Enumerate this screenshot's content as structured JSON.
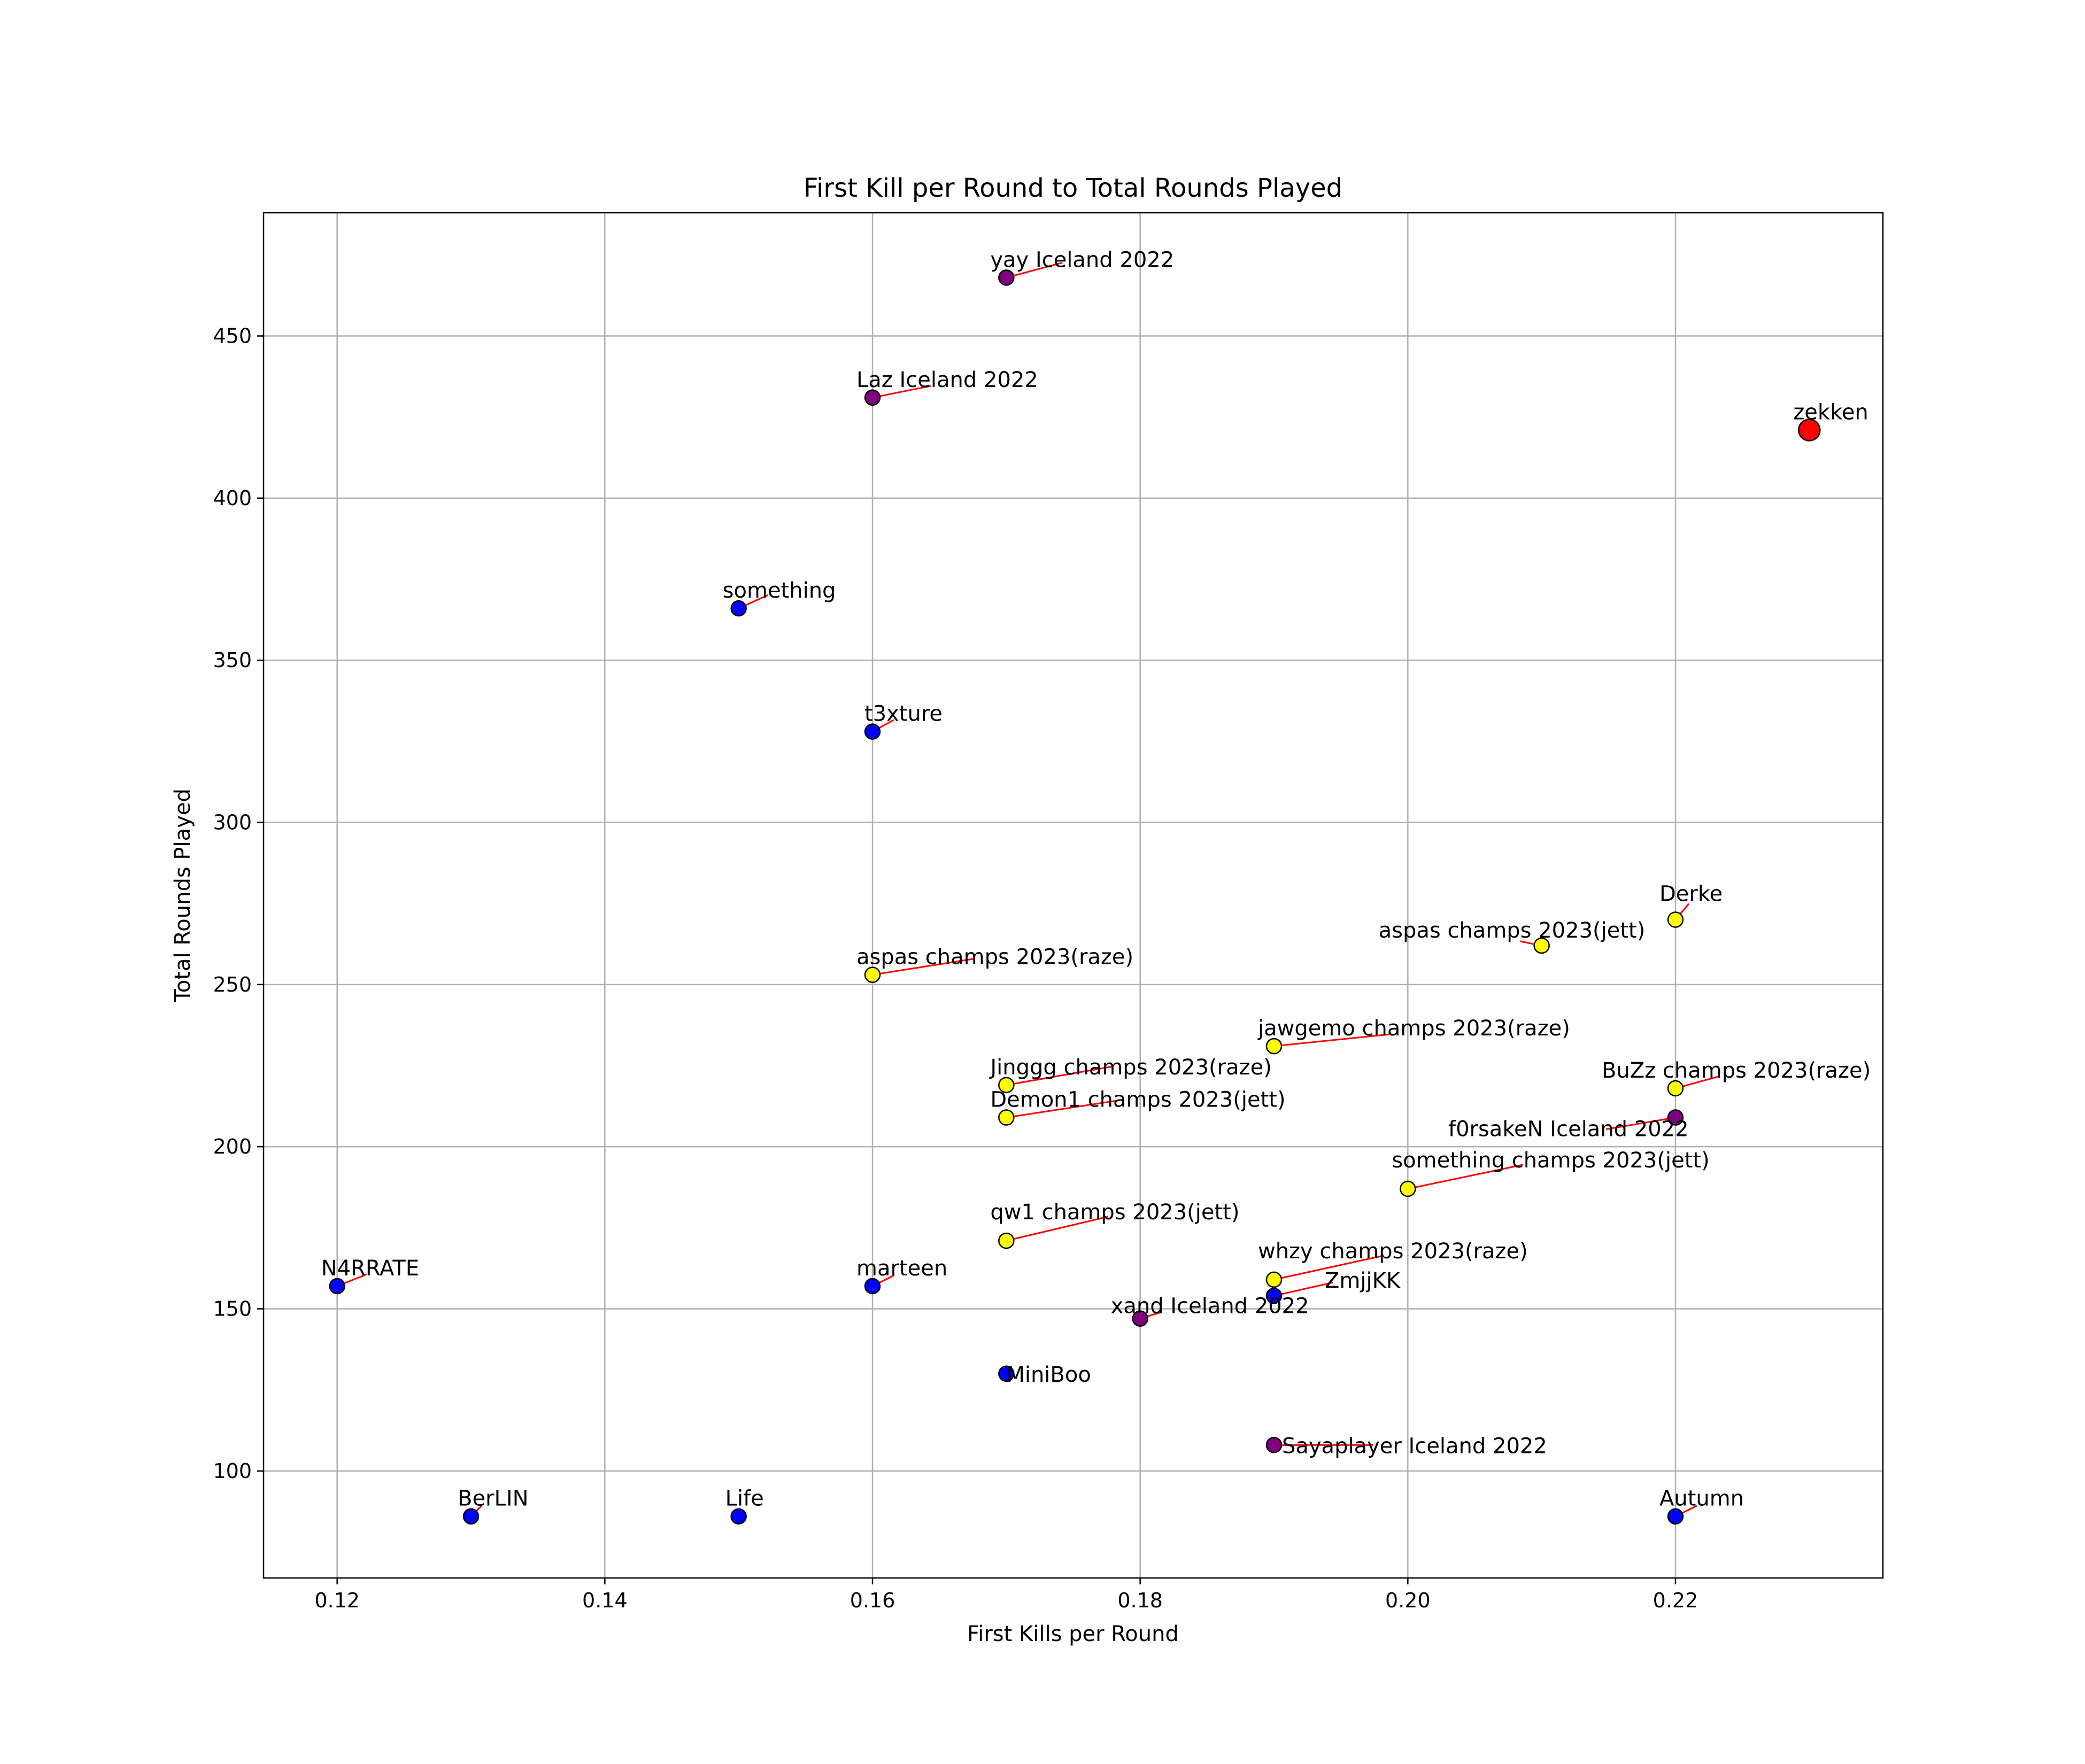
{
  "chart_data": {
    "type": "scatter",
    "title": "First Kill per Round to Total Rounds Played",
    "xlabel": "First Kills per Round",
    "ylabel": "Total Rounds Played",
    "xlim": [
      0.1145,
      0.2355
    ],
    "ylim": [
      67,
      488
    ],
    "xticks": [
      "0.12",
      "0.14",
      "0.16",
      "0.18",
      "0.20",
      "0.22"
    ],
    "yticks": [
      "100",
      "150",
      "200",
      "250",
      "300",
      "350",
      "400",
      "450"
    ],
    "grid": true,
    "legend": "none",
    "colors": {
      "blue": "#0000ff",
      "yellow": "#ffff00",
      "purple": "#800080",
      "red": "#ff0000",
      "connector": "#ff0000",
      "grid": "#b0b0b0"
    },
    "points": [
      {
        "label": "yay Iceland 2022",
        "x": 0.17,
        "y": 468,
        "color": "purple"
      },
      {
        "label": "Laz Iceland 2022",
        "x": 0.16,
        "y": 431,
        "color": "purple"
      },
      {
        "label": "zekken",
        "x": 0.23,
        "y": 421,
        "color": "red"
      },
      {
        "label": "something",
        "x": 0.15,
        "y": 366,
        "color": "blue"
      },
      {
        "label": "t3xture",
        "x": 0.16,
        "y": 328,
        "color": "blue"
      },
      {
        "label": "Derke",
        "x": 0.22,
        "y": 270,
        "color": "yellow"
      },
      {
        "label": "aspas champs 2023(jett)",
        "x": 0.21,
        "y": 262,
        "color": "yellow"
      },
      {
        "label": "aspas champs 2023(raze)",
        "x": 0.16,
        "y": 253,
        "color": "yellow"
      },
      {
        "label": "jawgemo champs 2023(raze)",
        "x": 0.19,
        "y": 231,
        "color": "yellow"
      },
      {
        "label": "Jinggg champs 2023(raze)",
        "x": 0.17,
        "y": 219,
        "color": "yellow"
      },
      {
        "label": "BuZz champs 2023(raze)",
        "x": 0.22,
        "y": 218,
        "color": "yellow"
      },
      {
        "label": "Demon1 champs 2023(jett)",
        "x": 0.17,
        "y": 209,
        "color": "yellow"
      },
      {
        "label": "f0rsakeN Iceland 2022",
        "x": 0.22,
        "y": 209,
        "color": "purple"
      },
      {
        "label": "something champs 2023(jett)",
        "x": 0.2,
        "y": 187,
        "color": "yellow"
      },
      {
        "label": "qw1 champs 2023(jett)",
        "x": 0.17,
        "y": 171,
        "color": "yellow"
      },
      {
        "label": "whzy champs 2023(raze)",
        "x": 0.19,
        "y": 159,
        "color": "yellow"
      },
      {
        "label": "N4RRATE",
        "x": 0.12,
        "y": 157,
        "color": "blue"
      },
      {
        "label": "marteen",
        "x": 0.16,
        "y": 157,
        "color": "blue"
      },
      {
        "label": "ZmjjKK",
        "x": 0.19,
        "y": 154,
        "color": "blue"
      },
      {
        "label": "xand Iceland 2022",
        "x": 0.18,
        "y": 147,
        "color": "purple"
      },
      {
        "label": "MiniBoo",
        "x": 0.17,
        "y": 130,
        "color": "blue"
      },
      {
        "label": "Sayaplayer Iceland 2022",
        "x": 0.19,
        "y": 108,
        "color": "purple"
      },
      {
        "label": "BerLIN",
        "x": 0.13,
        "y": 86,
        "color": "blue"
      },
      {
        "label": "Life",
        "x": 0.15,
        "y": 86,
        "color": "blue"
      },
      {
        "label": "Autumn",
        "x": 0.22,
        "y": 86,
        "color": "blue"
      }
    ]
  }
}
